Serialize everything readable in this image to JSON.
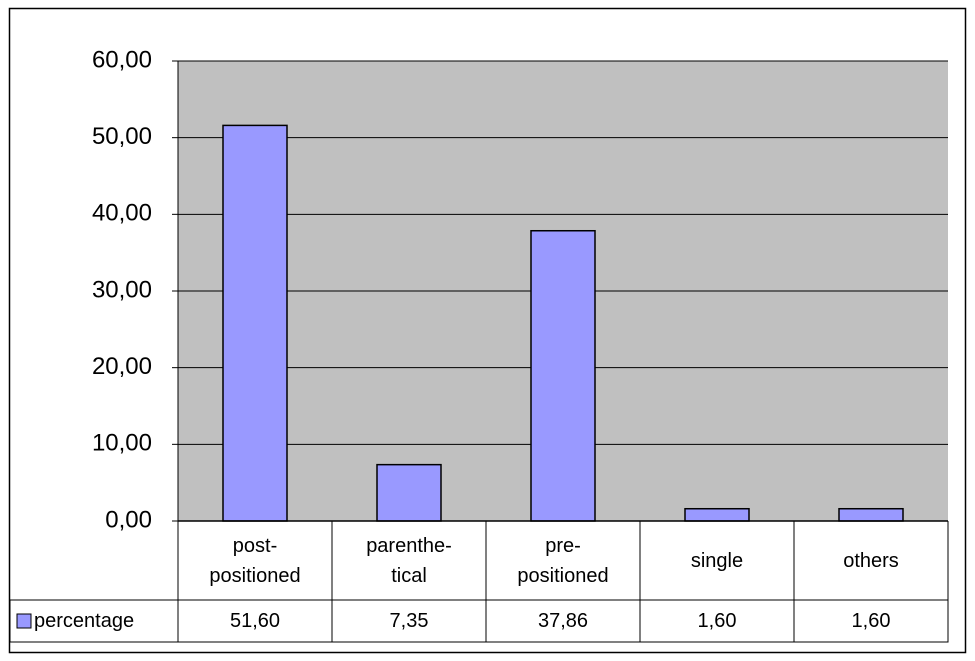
{
  "chart_data": {
    "type": "bar",
    "categories": [
      "post-\npositioned",
      "parenthe-\ntical",
      "pre-\npositioned",
      "single",
      "others"
    ],
    "series": [
      {
        "name": "percentage",
        "color": "#9999ff",
        "values": [
          51.6,
          7.35,
          37.86,
          1.6,
          1.6
        ],
        "value_labels": [
          "51,60",
          "7,35",
          "37,86",
          "1,60",
          "1,60"
        ]
      }
    ],
    "ylim": [
      0,
      60
    ],
    "yticks": [
      {
        "value": 0,
        "label": "0,00"
      },
      {
        "value": 10,
        "label": "10,00"
      },
      {
        "value": 20,
        "label": "20,00"
      },
      {
        "value": 30,
        "label": "30,00"
      },
      {
        "value": 40,
        "label": "40,00"
      },
      {
        "value": 50,
        "label": "50,00"
      },
      {
        "value": 60,
        "label": "60,00"
      }
    ],
    "grid": true,
    "plot_background": "#c0c0c0"
  }
}
